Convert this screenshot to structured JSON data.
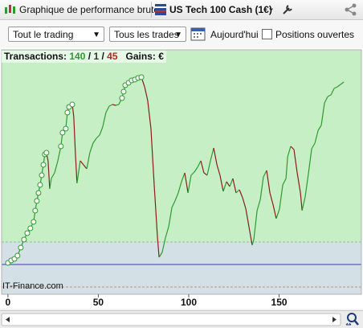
{
  "toolbar": {
    "title": "Graphique de performance brute",
    "instrument": "US Tech 100 Cash (1€)"
  },
  "filters": {
    "period": "Tout le trading",
    "trades": "Tous les trades",
    "today": "Aujourd'hui",
    "open_positions": "Positions ouvertes"
  },
  "chart_data": {
    "type": "line",
    "stats": {
      "label": "Transactions:",
      "wins": 140,
      "separator": "/",
      "even": 1,
      "losses": 45,
      "gains_label": "Gains:",
      "gains": "€"
    },
    "watermark": "IT-Finance.com",
    "x": [
      0,
      1.8,
      3.6,
      5.3,
      7.1,
      8.9,
      10.7,
      12.4,
      14.2,
      15.1,
      16,
      16.9,
      17.8,
      18.7,
      19.6,
      20.4,
      21.3,
      22.2,
      23.1,
      24,
      25.8,
      27.6,
      29.3,
      30.2,
      32,
      32.9,
      33.8,
      35.6,
      36.4,
      37.3,
      38.2,
      40,
      41.8,
      43.6,
      45.3,
      47.1,
      48.9,
      50.7,
      52.4,
      54.2,
      56,
      57.8,
      59.6,
      61.3,
      63.1,
      64,
      64.9,
      66.7,
      68.4,
      70.2,
      72,
      73.8,
      75.6,
      77.3,
      79.1,
      80.9,
      82.7,
      83.6,
      85.3,
      87.1,
      88.9,
      90.7,
      92.4,
      94.2,
      96,
      97.8,
      99.6,
      101.3,
      103.1,
      104.9,
      106.7,
      108.4,
      110.2,
      112,
      113.8,
      115.6,
      117.3,
      119.1,
      120.9,
      122.7,
      124.4,
      126.2,
      128,
      129.8,
      131.6,
      133.3,
      135.1,
      136,
      137.8,
      139.6,
      141.3,
      143.1,
      144.9,
      146.7,
      148.4,
      150.2,
      152,
      153.8,
      154.7,
      156.4,
      158.2,
      160,
      161.8,
      162.7,
      164.4,
      166.2,
      168,
      169.8,
      171.6,
      173.3,
      175.1,
      176.9,
      178.7,
      180.4,
      182.2,
      184,
      185.8
    ],
    "values": [
      2,
      5,
      7,
      11,
      21,
      31,
      39,
      45,
      53,
      67,
      79,
      89,
      99,
      111,
      124,
      137,
      139,
      129,
      94,
      107,
      114,
      129,
      147,
      164,
      169,
      189,
      196,
      199,
      184,
      139,
      101,
      129,
      124,
      119,
      139,
      151,
      157,
      161,
      171,
      189,
      197,
      199,
      198,
      199,
      207,
      215,
      223,
      226,
      229,
      230,
      232,
      233,
      221,
      204,
      169,
      99,
      34,
      9,
      15,
      33,
      47,
      71,
      79,
      89,
      103,
      114,
      89,
      111,
      115,
      121,
      129,
      114,
      111,
      129,
      145,
      124,
      111,
      91,
      103,
      97,
      107,
      89,
      93,
      83,
      69,
      47,
      24,
      31,
      67,
      81,
      109,
      117,
      89,
      74,
      57,
      69,
      99,
      107,
      134,
      147,
      143,
      114,
      89,
      67,
      84,
      113,
      144,
      151,
      167,
      173,
      201,
      209,
      211,
      219,
      221,
      224,
      227
    ],
    "up_color": "#2f9a2f",
    "down_color": "#8c1c1c",
    "marker_color": "#2f9a2f",
    "xlim": [
      -3.5,
      195.5
    ],
    "xticks": [
      0,
      50,
      100,
      150
    ],
    "ylim": [
      -37,
      267
    ],
    "reference_lines": [
      {
        "value": 28,
        "color": "#8fc28f",
        "style": "dashed"
      },
      {
        "value": 0,
        "color": "#3b3bb0",
        "style": "solid"
      },
      {
        "value": -28,
        "color": "#c98a8a",
        "style": "dashed"
      }
    ],
    "upper_color": "#c6efc6",
    "lower_color": "#d3e0e6"
  }
}
